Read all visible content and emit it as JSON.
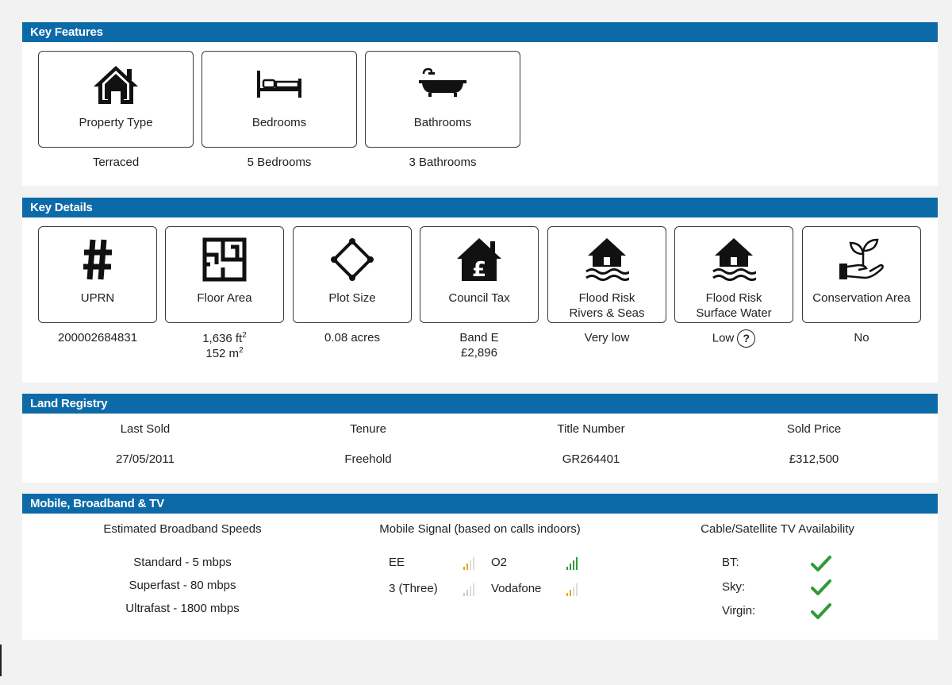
{
  "key_features": {
    "title": "Key Features",
    "cards": [
      {
        "icon": "house-icon",
        "label": "Property Type",
        "value": "Terraced"
      },
      {
        "icon": "bed-icon",
        "label": "Bedrooms",
        "value": "5 Bedrooms"
      },
      {
        "icon": "bath-icon",
        "label": "Bathrooms",
        "value": "3 Bathrooms"
      }
    ]
  },
  "key_details": {
    "title": "Key Details",
    "cards": [
      {
        "icon": "hash-icon",
        "label": "UPRN",
        "value": "200002684831"
      },
      {
        "icon": "floor-plan-icon",
        "label": "Floor Area",
        "value_ft": "1,636 ft",
        "value_m": "152 m",
        "sup": "2"
      },
      {
        "icon": "plot-icon",
        "label": "Plot Size",
        "value": "0.08 acres"
      },
      {
        "icon": "council-tax-icon",
        "label": "Council Tax",
        "value_line1": "Band E",
        "value_line2": "£2,896"
      },
      {
        "icon": "flood-icon",
        "label_line1": "Flood Risk",
        "label_line2": "Rivers & Seas",
        "value": "Very low"
      },
      {
        "icon": "flood-icon",
        "label_line1": "Flood Risk",
        "label_line2": "Surface Water",
        "value": "Low",
        "help": "?"
      },
      {
        "icon": "plant-hand-icon",
        "label": "Conservation Area",
        "value": "No"
      }
    ]
  },
  "land_registry": {
    "title": "Land Registry",
    "columns": [
      {
        "header": "Last Sold",
        "value": "27/05/2011"
      },
      {
        "header": "Tenure",
        "value": "Freehold"
      },
      {
        "header": "Title Number",
        "value": "GR264401"
      },
      {
        "header": "Sold Price",
        "value": "£312,500"
      }
    ]
  },
  "mobile": {
    "title": "Mobile, Broadband & TV",
    "broadband_header": "Estimated Broadband Speeds",
    "broadband": [
      "Standard - 5 mbps",
      "Superfast - 80 mbps",
      "Ultrafast - 1800 mbps"
    ],
    "signal_header": "Mobile Signal (based on calls indoors)",
    "signals": [
      {
        "name": "EE",
        "bars": 2,
        "color": "#e8a317"
      },
      {
        "name": "O2",
        "bars": 4,
        "color": "#2e9b3a"
      },
      {
        "name": "3 (Three)",
        "bars": 0,
        "color": "#cccccc"
      },
      {
        "name": "Vodafone",
        "bars": 2,
        "color": "#e8a317"
      }
    ],
    "tv_header": "Cable/Satellite TV Availability",
    "tv": [
      {
        "name": "BT:",
        "available": true
      },
      {
        "name": "Sky:",
        "available": true
      },
      {
        "name": "Virgin:",
        "available": true
      }
    ]
  },
  "colors": {
    "header_blue": "#0d6aa8",
    "tick_green": "#2e9b3a"
  }
}
